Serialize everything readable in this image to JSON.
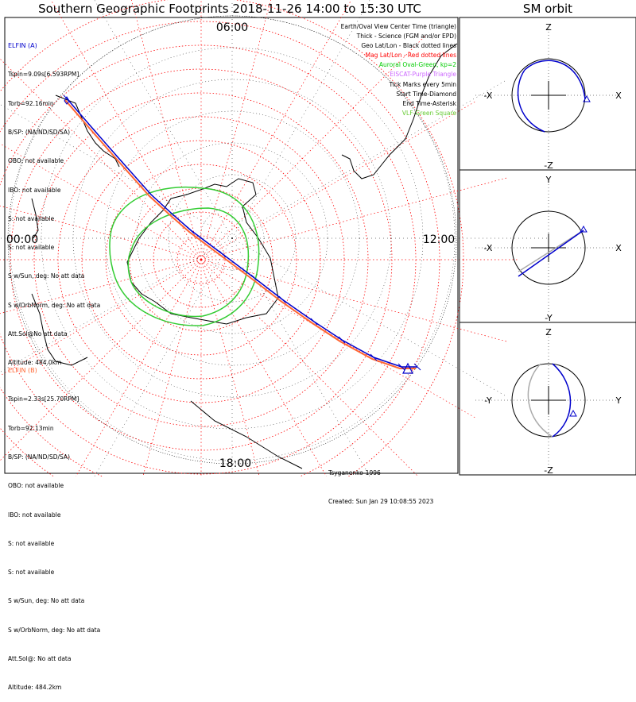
{
  "header": {
    "title": "Southern Geographic Footprints 2018-11-26 14:00 to 15:30 UTC",
    "orbit_title": "SM orbit"
  },
  "elfin_a": {
    "name": "ELFIN (A)",
    "color": "#0000cc",
    "lines": [
      "Tspin=9.09s[6.593RPM]",
      "Torb=92.16min",
      "B/SP: (NA/ND/SD/SA)",
      "OBO: not available",
      "IBO: not available",
      "S: not available",
      "S: not available",
      "S w/Sun, deg: No att data",
      "S w/OrbNorm, deg: No att data",
      "Att.Sol@No att data",
      "Altitude: 484.0km"
    ]
  },
  "elfin_b": {
    "name": "ELFIN (B)",
    "color": "#ff6633",
    "lines": [
      "Tspin=2.33s[25.70RPM]",
      "Torb=92.13min",
      "B/SP: (NA/ND/SD/SA)",
      "OBO: not available",
      "IBO: not available",
      "S: not available",
      "S: not available",
      "S w/Sun, deg: No att data",
      "S w/OrbNorm, deg: No att data",
      "Att.Sol@: No att data",
      "Altitude: 484.2km"
    ]
  },
  "legend": [
    {
      "text": "Earth/Oval View Center Time (triangle)",
      "color": "#000000"
    },
    {
      "text": "Thick - Science (FGM and/or EPD)",
      "color": "#000000"
    },
    {
      "text": "Geo Lat/Lon - Black dotted lines",
      "color": "#000000"
    },
    {
      "text": "Mag Lat/Lon - Red dotted lines",
      "color": "#ff0000"
    },
    {
      "text": "Auroral Oval-Green, kp=2",
      "color": "#00cc00"
    },
    {
      "text": "EISCAT-Purple Triangle",
      "color": "#cc66ff"
    },
    {
      "text": "Tick Marks every 5min",
      "color": "#000000"
    },
    {
      "text": "Start Time-Diamond",
      "color": "#000000"
    },
    {
      "text": "End Time-Asterisk",
      "color": "#000000"
    },
    {
      "text": "VLF-Green Square",
      "color": "#66cc33"
    }
  ],
  "footer": {
    "model": "Tsyganenko-1996",
    "created": "Created: Sun Jan 29 10:08:55 2023"
  },
  "chart_data": [
    {
      "type": "polar-map",
      "title": "Southern Geographic Footprints 2018-11-26 14:00 to 15:30 UTC",
      "hour_labels": {
        "top": "06:00",
        "left": "00:00",
        "right": "12:00",
        "bottom": "18:00"
      },
      "colors": {
        "orbit_a": "#0000cc",
        "orbit_b": "#ff6633",
        "mag_grid": "#ff0000",
        "geo_grid": "#000000",
        "auroral_oval": "#00cc00"
      },
      "grid": true
    },
    {
      "type": "orbit-projection",
      "title": "SM orbit",
      "panels": [
        {
          "top": "Z",
          "bottom": "-Z",
          "left": "-X",
          "right": "X"
        },
        {
          "top": "Y",
          "bottom": "-Y",
          "left": "-X",
          "right": "X"
        },
        {
          "top": "Z",
          "bottom": "-Z",
          "left": "-Y",
          "right": "Y"
        }
      ]
    }
  ]
}
